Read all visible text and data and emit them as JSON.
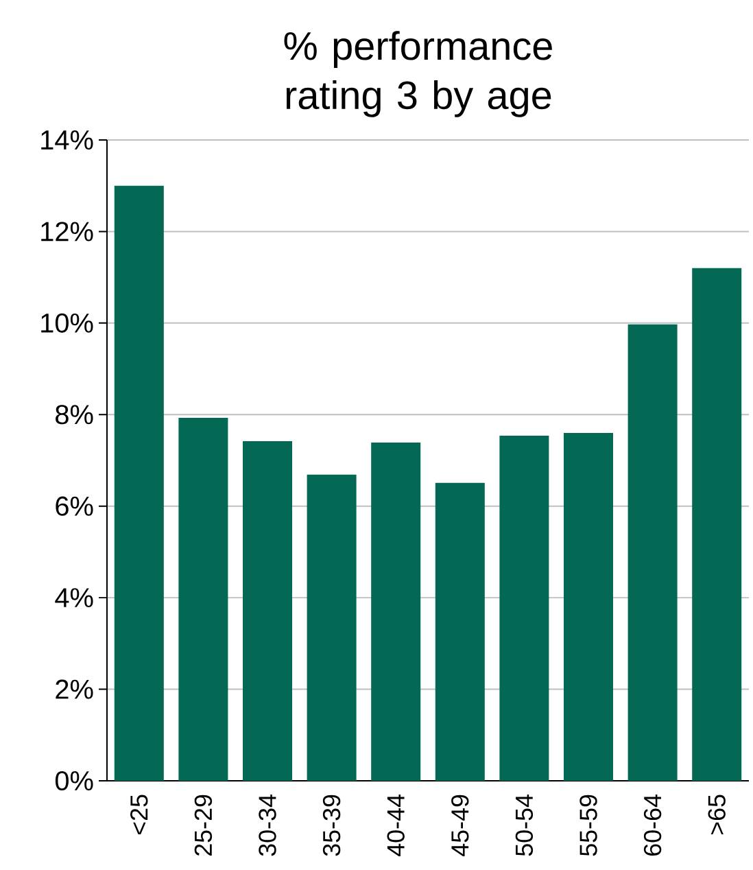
{
  "chart_data": {
    "type": "bar",
    "title": "% performance rating 3 by age",
    "categories": [
      "<25",
      "25-29",
      "30-34",
      "35-39",
      "40-44",
      "45-49",
      "50-54",
      "55-59",
      "60-64",
      ">65"
    ],
    "values": [
      13.0,
      7.93,
      7.42,
      6.69,
      7.39,
      6.51,
      7.54,
      7.6,
      9.97,
      11.2
    ],
    "color": "#036955",
    "ylim": [
      0,
      14
    ],
    "yticks": [
      {
        "value": 0,
        "label": "0%"
      },
      {
        "value": 2,
        "label": "2%"
      },
      {
        "value": 4,
        "label": "4%"
      },
      {
        "value": 6,
        "label": "6%"
      },
      {
        "value": 8,
        "label": "8%"
      },
      {
        "value": 10,
        "label": "10%"
      },
      {
        "value": 12,
        "label": "12%"
      },
      {
        "value": 14,
        "label": "14%"
      }
    ],
    "grid": "y"
  }
}
